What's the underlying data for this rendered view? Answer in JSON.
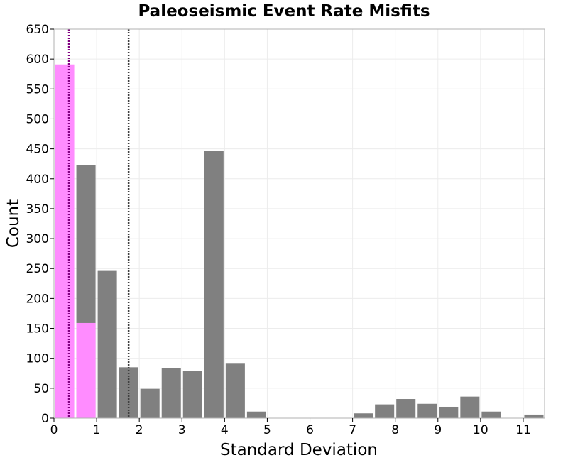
{
  "chart_data": {
    "type": "bar",
    "title": "Paleoseismic Event Rate Misfits",
    "xlabel": "Standard Deviation",
    "ylabel": "Count",
    "xlim": [
      0,
      11.5
    ],
    "ylim": [
      0,
      650
    ],
    "xticks": [
      "0",
      "1",
      "2",
      "3",
      "4",
      "5",
      "6",
      "7",
      "8",
      "9",
      "10",
      "11"
    ],
    "yticks": [
      "0",
      "50",
      "100",
      "150",
      "200",
      "250",
      "300",
      "350",
      "400",
      "450",
      "500",
      "550",
      "600",
      "650"
    ],
    "grid": true,
    "bin_width": 0.5,
    "series": [
      {
        "color": "#808080",
        "bins": [
          {
            "x0": 0.5,
            "value": 423
          },
          {
            "x0": 1.0,
            "value": 246
          },
          {
            "x0": 1.5,
            "value": 85
          },
          {
            "x0": 2.0,
            "value": 49
          },
          {
            "x0": 2.5,
            "value": 84
          },
          {
            "x0": 3.0,
            "value": 79
          },
          {
            "x0": 3.5,
            "value": 447
          },
          {
            "x0": 4.0,
            "value": 91
          },
          {
            "x0": 4.5,
            "value": 11
          },
          {
            "x0": 7.0,
            "value": 8
          },
          {
            "x0": 7.5,
            "value": 23
          },
          {
            "x0": 8.0,
            "value": 32
          },
          {
            "x0": 8.5,
            "value": 24
          },
          {
            "x0": 9.0,
            "value": 19
          },
          {
            "x0": 9.5,
            "value": 36
          },
          {
            "x0": 10.0,
            "value": 11
          },
          {
            "x0": 11.0,
            "value": 6
          }
        ]
      },
      {
        "color": "#ff8cff",
        "bins": [
          {
            "x0": 0.0,
            "value": 591
          },
          {
            "x0": 0.5,
            "value": 159
          }
        ]
      }
    ],
    "reference_lines": [
      {
        "x": 0.35,
        "color": "#800080",
        "style": "dotted"
      },
      {
        "x": 1.75,
        "color": "#404040",
        "style": "dotted"
      }
    ]
  }
}
